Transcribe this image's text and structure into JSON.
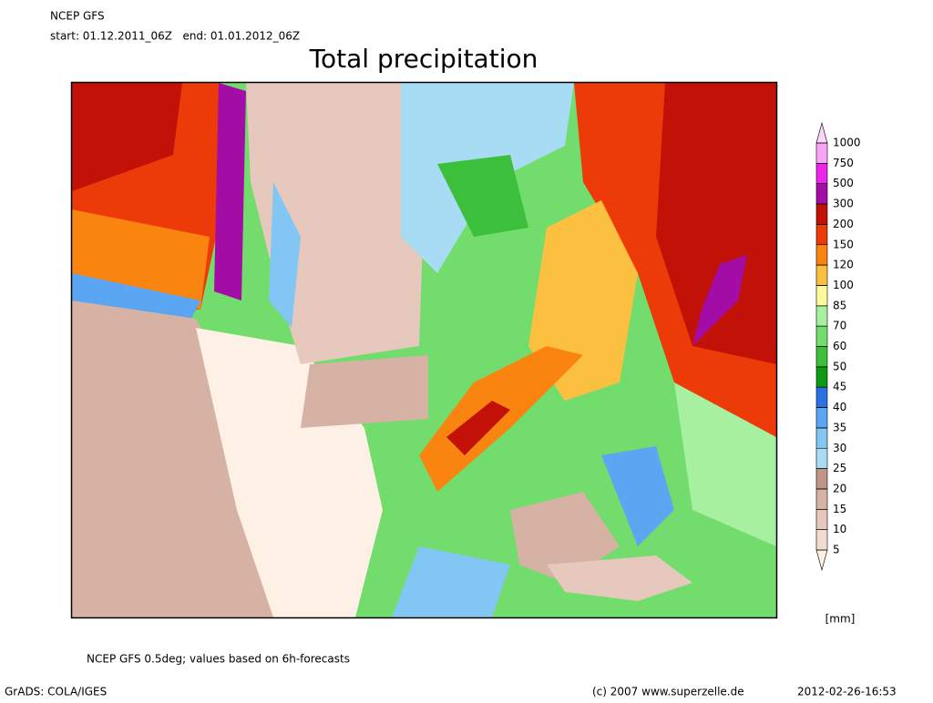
{
  "header": {
    "model": "NCEP GFS",
    "period": "start: 01.12.2011_06Z   end: 01.01.2012_06Z"
  },
  "title": "Total precipitation",
  "colorbar": {
    "ticks": [
      5,
      10,
      15,
      20,
      25,
      30,
      35,
      40,
      45,
      50,
      60,
      70,
      85,
      100,
      120,
      150,
      200,
      300,
      500,
      750,
      1000
    ],
    "colors": [
      "#fdf0e4",
      "#f2dcd2",
      "#e6c8bc",
      "#d6b2a4",
      "#bf9686",
      "#a8dcf4",
      "#82c6f4",
      "#5aa6f2",
      "#2a72e2",
      "#0e9a12",
      "#3cc03c",
      "#72dc6c",
      "#a6f0a0",
      "#fcf89c",
      "#fcc040",
      "#fa8410",
      "#ec3a08",
      "#c21208",
      "#a40ca6",
      "#ec24ec",
      "#f8a4f6",
      "#fcd4fa"
    ],
    "unit": "[mm]"
  },
  "footer": {
    "note": "NCEP GFS 0.5deg; values based on 6h-forecasts",
    "software": "GrADS: COLA/IGES",
    "copyright": "(c) 2007 www.superzelle.de",
    "timestamp": "2012-02-26-16:53"
  }
}
